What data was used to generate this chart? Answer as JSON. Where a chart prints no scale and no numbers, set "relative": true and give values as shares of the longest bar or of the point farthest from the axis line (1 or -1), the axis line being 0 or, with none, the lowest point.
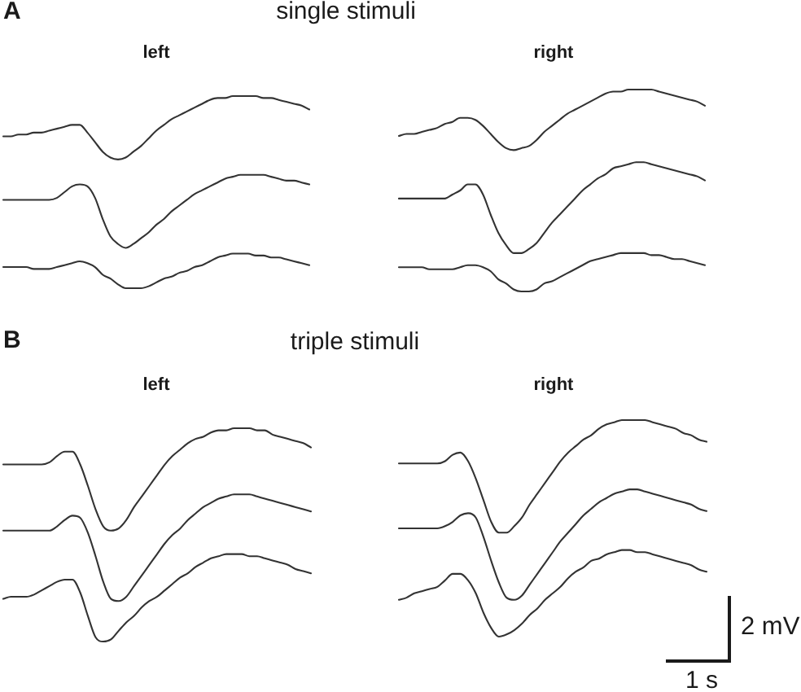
{
  "chart_data": [
    {
      "type": "line",
      "title": "left",
      "annotations": [
        "A",
        "single stimuli"
      ],
      "relative": true,
      "marker": "none",
      "categories": [
        null,
        null,
        null,
        null,
        null,
        null,
        null,
        null,
        null,
        null,
        null,
        null,
        null,
        null,
        null,
        null,
        null,
        null,
        null,
        null,
        null,
        null,
        null,
        null,
        null,
        null,
        null,
        null,
        null,
        null,
        null,
        null,
        null,
        null,
        null,
        null,
        null,
        null,
        null,
        null,
        null
      ],
      "series": [
        {
          "color": "#333333",
          "values": [
            0.79,
            0.79,
            0.8,
            0.8,
            0.81,
            0.81,
            0.82,
            0.83,
            0.84,
            0.85,
            0.85,
            0.81,
            0.76,
            0.71,
            0.68,
            0.67,
            0.68,
            0.71,
            0.74,
            0.78,
            0.82,
            0.85,
            0.88,
            0.9,
            0.92,
            0.94,
            0.96,
            0.98,
            0.99,
            0.99,
            1,
            1,
            1,
            1,
            0.99,
            0.99,
            0.98,
            0.97,
            0.96,
            0.95,
            0.93
          ]
        },
        {
          "color": "#333333",
          "values": [
            0.46,
            0.46,
            0.46,
            0.46,
            0.46,
            0.46,
            0.46,
            0.47,
            0.5,
            0.53,
            0.54,
            0.53,
            0.47,
            0.36,
            0.27,
            0.23,
            0.21,
            0.23,
            0.26,
            0.29,
            0.33,
            0.36,
            0.4,
            0.43,
            0.46,
            0.49,
            0.51,
            0.53,
            0.55,
            0.57,
            0.58,
            0.59,
            0.59,
            0.59,
            0.59,
            0.58,
            0.57,
            0.56,
            0.56,
            0.55,
            0.54
          ]
        },
        {
          "color": "#333333",
          "values": [
            0.11,
            0.11,
            0.11,
            0.11,
            0.1,
            0.1,
            0.1,
            0.11,
            0.12,
            0.13,
            0.14,
            0.13,
            0.11,
            0.07,
            0.05,
            0.02,
            0,
            0,
            0,
            0.01,
            0.03,
            0.05,
            0.06,
            0.08,
            0.09,
            0.11,
            0.12,
            0.14,
            0.16,
            0.17,
            0.18,
            0.18,
            0.18,
            0.17,
            0.17,
            0.16,
            0.16,
            0.15,
            0.14,
            0.13,
            0.12
          ]
        }
      ]
    },
    {
      "type": "line",
      "title": "right",
      "relative": true,
      "marker": "none",
      "categories": [
        null,
        null,
        null,
        null,
        null,
        null,
        null,
        null,
        null,
        null,
        null,
        null,
        null,
        null,
        null,
        null,
        null,
        null,
        null,
        null,
        null,
        null,
        null,
        null,
        null,
        null,
        null,
        null,
        null,
        null,
        null,
        null,
        null,
        null,
        null,
        null,
        null,
        null,
        null,
        null,
        null
      ],
      "series": [
        {
          "color": "#333333",
          "values": [
            0.77,
            0.78,
            0.78,
            0.79,
            0.8,
            0.81,
            0.83,
            0.84,
            0.86,
            0.86,
            0.85,
            0.82,
            0.78,
            0.74,
            0.71,
            0.7,
            0.71,
            0.72,
            0.75,
            0.79,
            0.82,
            0.85,
            0.88,
            0.9,
            0.92,
            0.94,
            0.96,
            0.98,
            0.99,
            0.99,
            1,
            1,
            1,
            1,
            0.99,
            0.98,
            0.97,
            0.96,
            0.95,
            0.94,
            0.92
          ]
        },
        {
          "color": "#333333",
          "values": [
            0.46,
            0.46,
            0.46,
            0.46,
            0.46,
            0.46,
            0.46,
            0.48,
            0.5,
            0.53,
            0.53,
            0.48,
            0.38,
            0.29,
            0.23,
            0.19,
            0.19,
            0.21,
            0.24,
            0.29,
            0.34,
            0.38,
            0.42,
            0.46,
            0.5,
            0.53,
            0.56,
            0.58,
            0.61,
            0.62,
            0.63,
            0.64,
            0.64,
            0.63,
            0.62,
            0.61,
            0.6,
            0.59,
            0.58,
            0.57,
            0.55
          ]
        },
        {
          "color": "#333333",
          "values": [
            0.12,
            0.12,
            0.12,
            0.12,
            0.11,
            0.11,
            0.11,
            0.11,
            0.12,
            0.13,
            0.13,
            0.12,
            0.1,
            0.06,
            0.04,
            0.01,
            0,
            0,
            0.01,
            0.04,
            0.05,
            0.07,
            0.09,
            0.11,
            0.13,
            0.15,
            0.16,
            0.17,
            0.18,
            0.19,
            0.19,
            0.19,
            0.19,
            0.18,
            0.18,
            0.17,
            0.16,
            0.16,
            0.15,
            0.14,
            0.13
          ]
        }
      ]
    },
    {
      "type": "line",
      "title": "left",
      "annotations": [
        "B",
        "triple stimuli"
      ],
      "relative": true,
      "marker": "none",
      "categories": [
        null,
        null,
        null,
        null,
        null,
        null,
        null,
        null,
        null,
        null,
        null,
        null,
        null,
        null,
        null,
        null,
        null,
        null,
        null,
        null,
        null,
        null,
        null,
        null,
        null,
        null,
        null,
        null,
        null,
        null,
        null,
        null,
        null,
        null,
        null,
        null,
        null,
        null,
        null,
        null,
        null
      ],
      "series": [
        {
          "color": "#333333",
          "values": [
            0.83,
            0.83,
            0.83,
            0.83,
            0.83,
            0.83,
            0.84,
            0.87,
            0.89,
            0.89,
            0.83,
            0.73,
            0.62,
            0.54,
            0.52,
            0.53,
            0.57,
            0.63,
            0.68,
            0.73,
            0.78,
            0.83,
            0.87,
            0.9,
            0.93,
            0.95,
            0.96,
            0.98,
            0.99,
            0.99,
            1,
            1,
            1,
            0.99,
            0.99,
            0.97,
            0.96,
            0.95,
            0.94,
            0.93,
            0.91
          ]
        },
        {
          "color": "#333333",
          "values": [
            0.52,
            0.52,
            0.52,
            0.52,
            0.52,
            0.52,
            0.52,
            0.54,
            0.57,
            0.59,
            0.58,
            0.51,
            0.4,
            0.28,
            0.2,
            0.19,
            0.21,
            0.26,
            0.31,
            0.36,
            0.41,
            0.46,
            0.5,
            0.53,
            0.57,
            0.6,
            0.63,
            0.65,
            0.67,
            0.68,
            0.69,
            0.69,
            0.69,
            0.68,
            0.67,
            0.66,
            0.65,
            0.64,
            0.63,
            0.62,
            0.61
          ]
        },
        {
          "color": "#333333",
          "values": [
            0.2,
            0.21,
            0.21,
            0.21,
            0.22,
            0.24,
            0.26,
            0.28,
            0.29,
            0.29,
            0.23,
            0.12,
            0.02,
            0,
            0.01,
            0.05,
            0.09,
            0.12,
            0.16,
            0.19,
            0.21,
            0.24,
            0.27,
            0.3,
            0.32,
            0.35,
            0.37,
            0.39,
            0.4,
            0.41,
            0.41,
            0.41,
            0.4,
            0.4,
            0.39,
            0.38,
            0.37,
            0.36,
            0.34,
            0.33,
            0.32
          ]
        }
      ]
    },
    {
      "type": "line",
      "title": "right",
      "annotations": [
        "2 mV",
        "1 s"
      ],
      "relative": true,
      "marker": "none",
      "categories": [
        null,
        null,
        null,
        null,
        null,
        null,
        null,
        null,
        null,
        null,
        null,
        null,
        null,
        null,
        null,
        null,
        null,
        null,
        null,
        null,
        null,
        null,
        null,
        null,
        null,
        null,
        null,
        null,
        null,
        null,
        null,
        null,
        null,
        null,
        null,
        null,
        null,
        null,
        null,
        null,
        null
      ],
      "series": [
        {
          "color": "#333333",
          "values": [
            0.8,
            0.8,
            0.8,
            0.8,
            0.8,
            0.8,
            0.81,
            0.84,
            0.85,
            0.81,
            0.73,
            0.63,
            0.53,
            0.48,
            0.48,
            0.51,
            0.55,
            0.61,
            0.66,
            0.71,
            0.76,
            0.81,
            0.85,
            0.88,
            0.91,
            0.93,
            0.96,
            0.98,
            0.99,
            1,
            1,
            1,
            1,
            0.99,
            0.98,
            0.97,
            0.96,
            0.94,
            0.93,
            0.91,
            0.9
          ]
        },
        {
          "color": "#333333",
          "values": [
            0.5,
            0.5,
            0.5,
            0.5,
            0.5,
            0.5,
            0.51,
            0.53,
            0.56,
            0.57,
            0.55,
            0.46,
            0.35,
            0.25,
            0.18,
            0.17,
            0.19,
            0.24,
            0.29,
            0.34,
            0.39,
            0.44,
            0.48,
            0.52,
            0.56,
            0.59,
            0.62,
            0.64,
            0.66,
            0.67,
            0.68,
            0.68,
            0.67,
            0.66,
            0.65,
            0.64,
            0.63,
            0.62,
            0.61,
            0.59,
            0.58
          ]
        },
        {
          "color": "#333333",
          "values": [
            0.17,
            0.18,
            0.2,
            0.21,
            0.22,
            0.23,
            0.26,
            0.29,
            0.29,
            0.26,
            0.2,
            0.11,
            0.04,
            0,
            0.01,
            0.03,
            0.06,
            0.1,
            0.13,
            0.17,
            0.2,
            0.23,
            0.27,
            0.3,
            0.32,
            0.35,
            0.36,
            0.38,
            0.39,
            0.4,
            0.4,
            0.39,
            0.39,
            0.38,
            0.37,
            0.36,
            0.35,
            0.34,
            0.33,
            0.31,
            0.3
          ]
        }
      ]
    }
  ]
}
